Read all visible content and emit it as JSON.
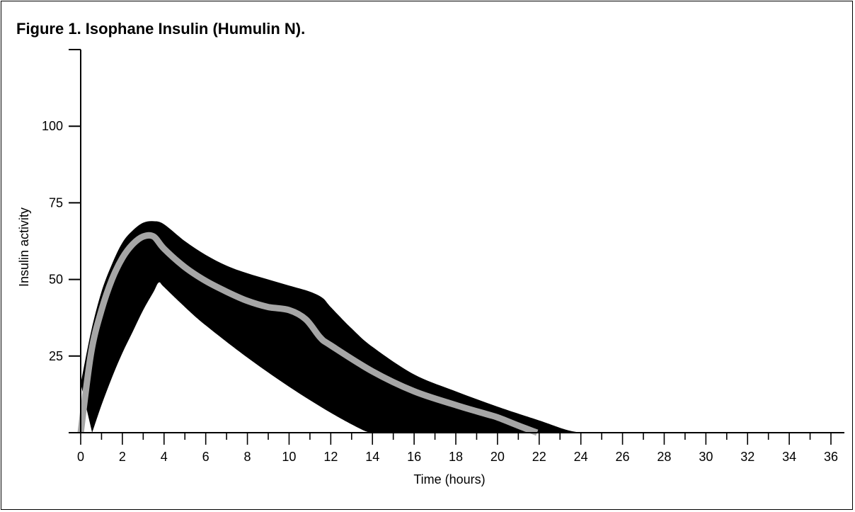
{
  "chart_data": {
    "type": "area",
    "title": "Figure 1. Isophane Insulin (Humulin N).",
    "xlabel": "Time (hours)",
    "ylabel": "Insulin activity",
    "xlim": [
      0,
      36
    ],
    "ylim": [
      0,
      125
    ],
    "x_ticks": [
      0,
      2,
      4,
      6,
      8,
      10,
      12,
      14,
      16,
      18,
      20,
      22,
      24,
      26,
      28,
      30,
      32,
      34,
      36
    ],
    "x_tick_labels": [
      "0",
      "2",
      "4",
      "6",
      "8",
      "10",
      "12",
      "14",
      "16",
      "18",
      "20",
      "22",
      "24",
      "26",
      "28",
      "30",
      "32",
      "34",
      "36"
    ],
    "y_ticks": [
      25,
      50,
      75,
      100
    ],
    "y_tick_labels": [
      "25",
      "50",
      "75",
      "100"
    ],
    "grid": false,
    "colors": {
      "band": "#000000",
      "mean_line": "#a6a6a6",
      "axes": "#000000"
    },
    "series": [
      {
        "role": "upper-range",
        "x": [
          0,
          0.5,
          1,
          1.5,
          2,
          2.5,
          3,
          3.5,
          4,
          5,
          6,
          7,
          8,
          9,
          10,
          11,
          11.6,
          12,
          13,
          14,
          16,
          18,
          20,
          22,
          23,
          23.5,
          24
        ],
        "y": [
          16,
          33,
          46,
          55,
          62,
          66,
          68.5,
          69,
          68,
          62.5,
          58,
          54.5,
          52,
          50,
          48,
          46,
          44,
          41,
          34,
          28,
          19,
          13.5,
          8.5,
          4,
          1.6,
          0.6,
          0
        ]
      },
      {
        "role": "lower-range",
        "x": [
          0.55,
          1,
          1.5,
          2,
          2.5,
          3,
          3.5,
          3.75,
          4,
          5,
          6,
          8,
          10,
          12,
          13.5,
          14
        ],
        "y": [
          0,
          9,
          18,
          26,
          33,
          40,
          46,
          49,
          47.5,
          41,
          35,
          24.5,
          15,
          6.5,
          1,
          0
        ]
      },
      {
        "role": "mean",
        "x": [
          0,
          0.5,
          1,
          1.5,
          2,
          2.5,
          3,
          3.5,
          4,
          5,
          6,
          7,
          8,
          9,
          10,
          10.8,
          11.5,
          12,
          14,
          16,
          18,
          19.5,
          20,
          21,
          21.9
        ],
        "y": [
          0,
          26,
          40,
          50,
          57,
          61.5,
          64,
          64,
          60,
          54,
          49.5,
          46,
          43,
          41,
          40,
          37,
          31,
          28.5,
          20,
          13.5,
          9,
          6,
          5,
          2.3,
          0
        ]
      }
    ]
  }
}
